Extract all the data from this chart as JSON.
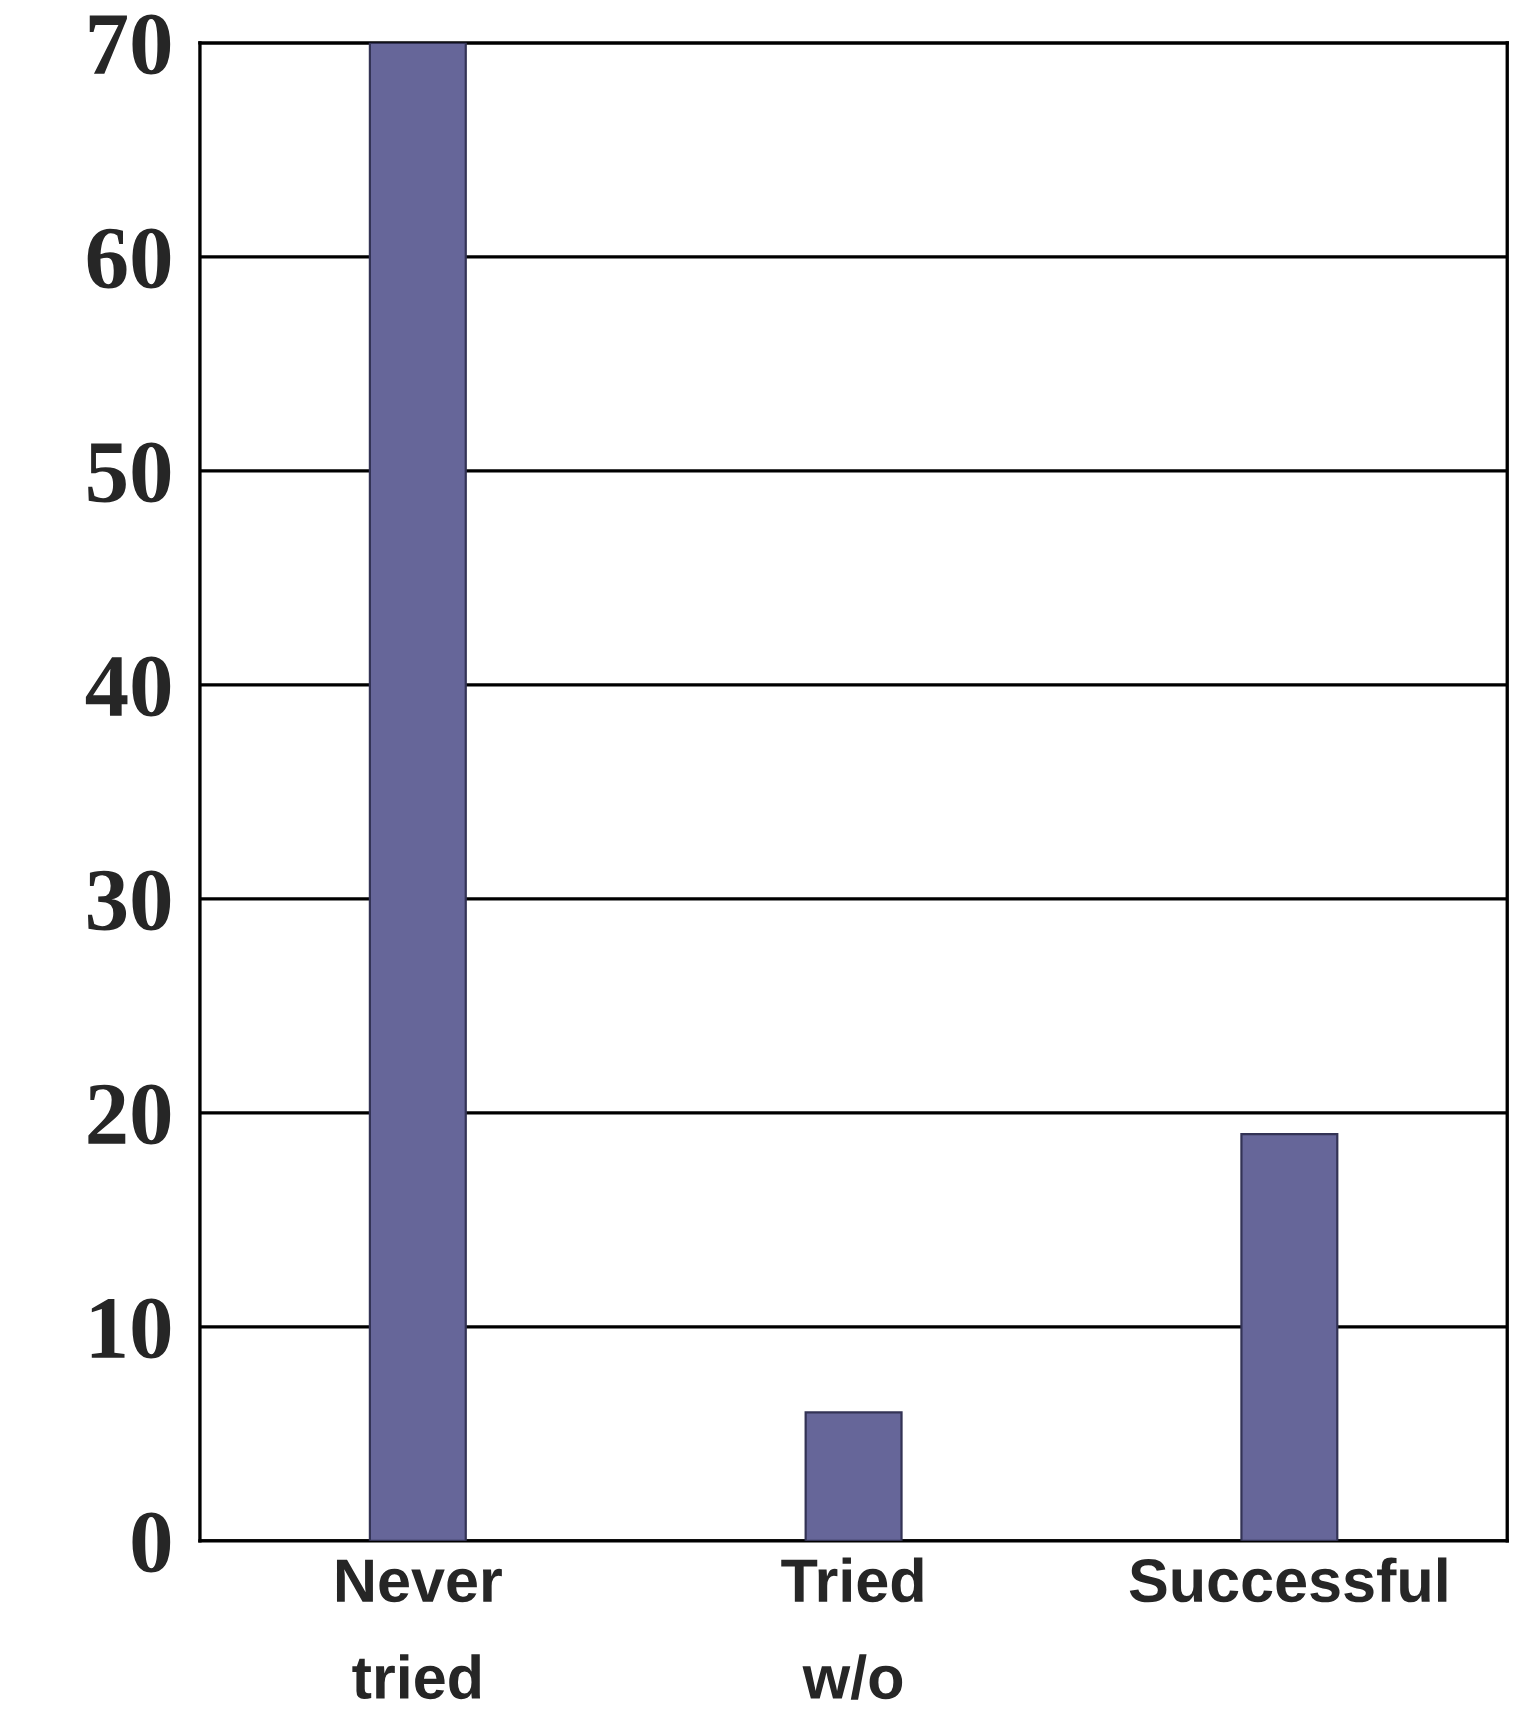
{
  "chart_data": {
    "type": "bar",
    "categories": [
      "Never\ntried",
      "Tried\nw/o",
      "Successful"
    ],
    "values": [
      70,
      6,
      19
    ],
    "color": "#666699",
    "ylim": [
      0,
      70
    ],
    "yticks": [
      0,
      10,
      20,
      30,
      40,
      50,
      60,
      70
    ],
    "grid": "y"
  }
}
